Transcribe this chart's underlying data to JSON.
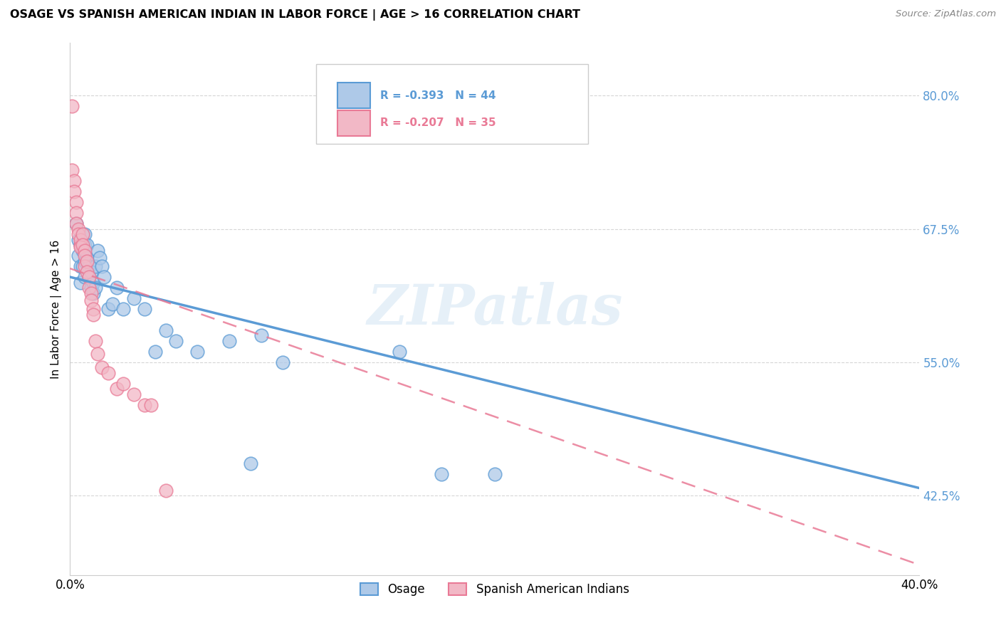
{
  "title": "OSAGE VS SPANISH AMERICAN INDIAN IN LABOR FORCE | AGE > 16 CORRELATION CHART",
  "source": "Source: ZipAtlas.com",
  "ylabel": "In Labor Force | Age > 16",
  "xlim": [
    0.0,
    0.4
  ],
  "ylim": [
    0.35,
    0.85
  ],
  "yticks": [
    0.425,
    0.55,
    0.675,
    0.8
  ],
  "ytick_labels": [
    "42.5%",
    "55.0%",
    "67.5%",
    "80.0%"
  ],
  "xticks": [
    0.0,
    0.1,
    0.2,
    0.3,
    0.4
  ],
  "xtick_labels": [
    "0.0%",
    "",
    "",
    "",
    "40.0%"
  ],
  "blue_color": "#5b9bd5",
  "pink_color": "#e97a96",
  "blue_fill": "#aec9e8",
  "pink_fill": "#f2b8c6",
  "watermark": "ZIPatlas",
  "osage_x": [
    0.003,
    0.004,
    0.004,
    0.005,
    0.005,
    0.005,
    0.006,
    0.006,
    0.006,
    0.007,
    0.007,
    0.007,
    0.007,
    0.008,
    0.008,
    0.009,
    0.009,
    0.01,
    0.01,
    0.011,
    0.011,
    0.012,
    0.012,
    0.013,
    0.014,
    0.015,
    0.016,
    0.018,
    0.02,
    0.022,
    0.025,
    0.03,
    0.035,
    0.04,
    0.045,
    0.05,
    0.06,
    0.075,
    0.085,
    0.09,
    0.1,
    0.155,
    0.175,
    0.2
  ],
  "osage_y": [
    0.68,
    0.665,
    0.65,
    0.66,
    0.64,
    0.625,
    0.67,
    0.655,
    0.64,
    0.67,
    0.66,
    0.645,
    0.63,
    0.66,
    0.648,
    0.64,
    0.63,
    0.62,
    0.635,
    0.615,
    0.625,
    0.62,
    0.64,
    0.655,
    0.648,
    0.64,
    0.63,
    0.6,
    0.605,
    0.62,
    0.6,
    0.61,
    0.6,
    0.56,
    0.58,
    0.57,
    0.56,
    0.57,
    0.455,
    0.575,
    0.55,
    0.56,
    0.445,
    0.445
  ],
  "spanish_x": [
    0.001,
    0.001,
    0.002,
    0.002,
    0.003,
    0.003,
    0.003,
    0.004,
    0.004,
    0.005,
    0.005,
    0.005,
    0.006,
    0.006,
    0.007,
    0.007,
    0.007,
    0.008,
    0.008,
    0.009,
    0.009,
    0.01,
    0.01,
    0.011,
    0.011,
    0.012,
    0.013,
    0.015,
    0.018,
    0.022,
    0.025,
    0.03,
    0.035,
    0.038,
    0.045
  ],
  "spanish_y": [
    0.79,
    0.73,
    0.72,
    0.71,
    0.7,
    0.69,
    0.68,
    0.675,
    0.67,
    0.66,
    0.665,
    0.658,
    0.67,
    0.66,
    0.655,
    0.65,
    0.64,
    0.645,
    0.635,
    0.63,
    0.62,
    0.615,
    0.608,
    0.6,
    0.595,
    0.57,
    0.558,
    0.545,
    0.54,
    0.525,
    0.53,
    0.52,
    0.51,
    0.51,
    0.43
  ],
  "blue_line_x": [
    0.0,
    0.4
  ],
  "blue_line_y": [
    0.63,
    0.432
  ],
  "pink_line_x": [
    0.0,
    0.4
  ],
  "pink_line_y": [
    0.638,
    0.36
  ]
}
